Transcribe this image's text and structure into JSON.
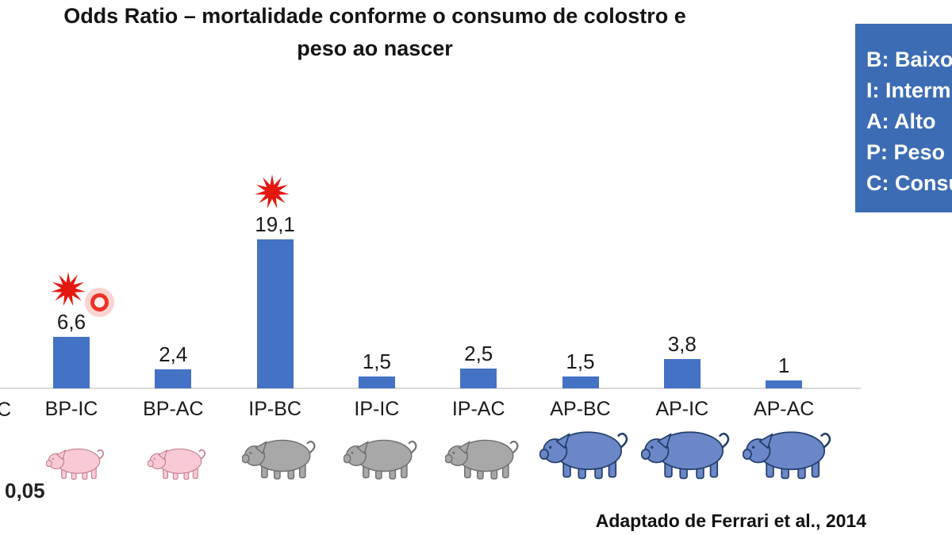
{
  "title": {
    "line1": "Odds Ratio – mortalidade conforme o consumo de colostro e",
    "line2": "peso ao nascer"
  },
  "legend": {
    "items": [
      "B: Baixo",
      "I: Interm",
      "A: Alto",
      "P: Peso",
      "C: Consu"
    ]
  },
  "chart_data": {
    "type": "bar",
    "title": "Odds Ratio – mortalidade conforme o consumo de colostro e peso ao nascer",
    "categories": [
      "BP-IC",
      "BP-AC",
      "IP-BC",
      "IP-IC",
      "IP-AC",
      "AP-BC",
      "AP-IC",
      "AP-AC"
    ],
    "values": [
      6.6,
      2.4,
      19.1,
      1.5,
      2.5,
      1.5,
      3.8,
      1
    ],
    "value_labels": [
      "6,6",
      "2,4",
      "19,1",
      "1,5",
      "2,5",
      "1,5",
      "3,8",
      "1"
    ],
    "significant": [
      true,
      false,
      true,
      false,
      false,
      false,
      false,
      false
    ],
    "pig_group": [
      "pink",
      "pink",
      "gray",
      "gray",
      "gray",
      "blue",
      "blue",
      "blue"
    ],
    "left_edge_partial_label": "C",
    "xlabel": "",
    "ylabel": "",
    "ylim": [
      0,
      20
    ],
    "grid": false,
    "legend_position": "top-right"
  },
  "footnotes": {
    "significance": "0,05",
    "source": "Adaptado de Ferrari et al., 2014"
  },
  "colors": {
    "bar": "#4472C4",
    "star": "#E3180F",
    "axis_line": "#D9D9D9",
    "legend_bg": "#3C6CB4",
    "legend_text": "#FFFFFF",
    "pig_pink_fill": "#F8CAD5",
    "pig_pink_stroke": "#C4808E",
    "pig_gray_fill": "#A8A8A8",
    "pig_gray_stroke": "#6F6F6F",
    "pig_blue_fill": "#6C87C8",
    "pig_blue_stroke": "#233F6B"
  }
}
